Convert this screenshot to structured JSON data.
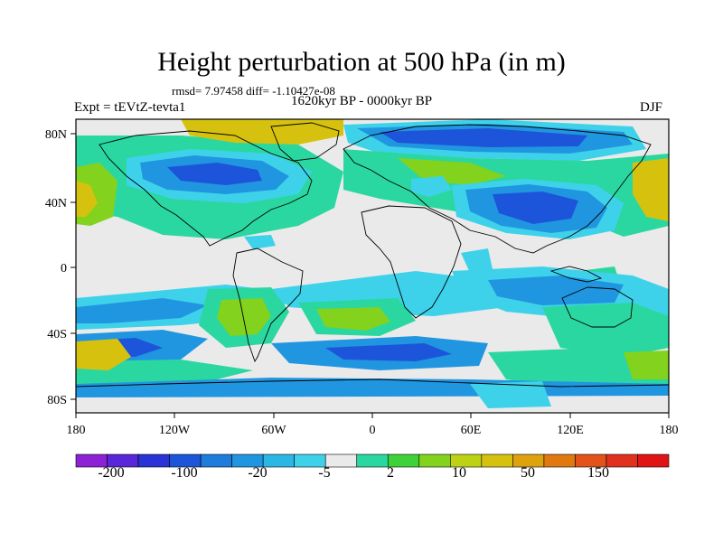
{
  "title": "Height perturbation at 500 hPa (in m)",
  "stats": "rmsd= 7.97458 diff= -1.10427e-08",
  "period": "1620kyr BP - 0000kyr BP",
  "experiment": "Expt = tEVtZ-tevta1",
  "season": "DJF",
  "map": {
    "lat_labels": [
      "80N",
      "40N",
      "0",
      "40S",
      "80S"
    ],
    "lon_labels": [
      "180",
      "120W",
      "60W",
      "0",
      "60E",
      "120E",
      "180"
    ]
  },
  "colorbar": {
    "colors": [
      "#8c21d6",
      "#5a26d9",
      "#2a33d6",
      "#1c55da",
      "#1f7bdc",
      "#2196e0",
      "#2cb6e5",
      "#3ed2ea",
      "#eaeaea",
      "#2bd7a0",
      "#3ed23a",
      "#82d21e",
      "#bdd215",
      "#d6c20e",
      "#dea20c",
      "#e07a10",
      "#e2521a",
      "#e2301e",
      "#e01414"
    ],
    "tick_labels": [
      "-200",
      "-100",
      "-20",
      "-5",
      "2",
      "10",
      "50",
      "150"
    ]
  },
  "palette": {
    "strong_neg": "#1c55da",
    "mid_neg": "#2196e0",
    "weak_neg": "#3ed2ea",
    "neutral": "#eaeaea",
    "weak_pos": "#2bd7a0",
    "mid_pos": "#82d21e",
    "strong_pos": "#d6c20e"
  }
}
